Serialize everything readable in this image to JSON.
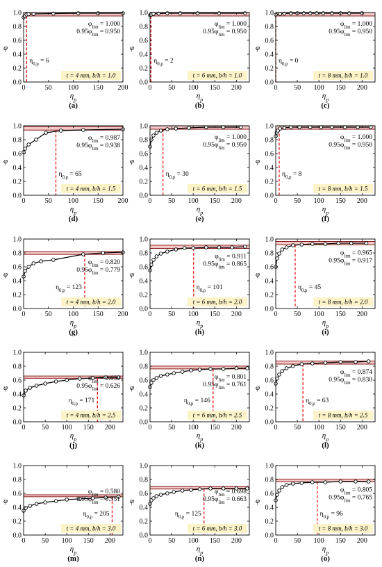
{
  "figure": {
    "colors": {
      "curve": "#000000",
      "marker_fill": "#ffffff",
      "band_fill": "#f2c8c8",
      "limit_line": "#8b1a1a",
      "drop_line": "#e8141a",
      "label_box": "#fcf3c8",
      "grid": "#d6d6d6"
    },
    "xlabel": "η_p",
    "ylabel": "φ"
  },
  "chart_data": [
    {
      "type": "line",
      "panel_label": "(a)",
      "annotation": "t = 4 mm, b/h = 1.0",
      "phi_lim_label": "φ_lim = 1.000",
      "phi_95_label": "0.95φ_lim = 0.950",
      "eta_label": "η_0,p = 6",
      "phi_lim": 1.0,
      "phi_95": 0.95,
      "eta0": 6,
      "xlim": [
        0,
        200
      ],
      "ylim": [
        0,
        1.0
      ],
      "xticks": [
        0,
        50,
        100,
        150,
        200
      ],
      "yticks": [
        0,
        0.2,
        0.4,
        0.6,
        0.8,
        1.0
      ],
      "x": [
        0,
        2,
        6,
        10,
        20,
        60,
        110,
        150,
        200
      ],
      "y": [
        0.93,
        0.95,
        0.97,
        0.975,
        0.98,
        0.985,
        0.99,
        0.99,
        0.99
      ]
    },
    {
      "type": "line",
      "panel_label": "(b)",
      "annotation": "t = 6 mm, b/h = 1.0",
      "phi_lim_label": "φ_lim = 1.000",
      "phi_95_label": "0.95φ_lim = 0.950",
      "eta_label": "η_0,p = 2",
      "phi_lim": 1.0,
      "phi_95": 0.95,
      "eta0": 2,
      "xlim": [
        0,
        230
      ],
      "ylim": [
        0,
        1.0
      ],
      "xticks": [
        0,
        50,
        100,
        150,
        200
      ],
      "yticks": [
        0,
        0.2,
        0.4,
        0.6,
        0.8,
        1.0
      ],
      "x": [
        0,
        2,
        8,
        20,
        40,
        70,
        110,
        160,
        220
      ],
      "y": [
        0.96,
        0.97,
        0.98,
        0.985,
        0.99,
        0.99,
        0.99,
        0.99,
        0.99
      ]
    },
    {
      "type": "line",
      "panel_label": "(c)",
      "annotation": "t = 8 mm, b/h = 1.0",
      "phi_lim_label": "φ_lim = 1.000",
      "phi_95_label": "0.95φ_lim = 0.950",
      "eta_label": "η_0,p = 0",
      "phi_lim": 1.0,
      "phi_95": 0.95,
      "eta0": 0,
      "xlim": [
        0,
        230
      ],
      "ylim": [
        0,
        1.0
      ],
      "xticks": [
        0,
        50,
        100,
        150,
        200
      ],
      "yticks": [
        0,
        0.2,
        0.4,
        0.6,
        0.8,
        1.0
      ],
      "x": [
        0,
        10,
        20,
        35,
        50,
        65,
        80,
        95,
        110,
        130,
        150,
        170,
        200
      ],
      "y": [
        0.97,
        0.98,
        0.985,
        0.99,
        0.99,
        0.99,
        0.99,
        0.99,
        0.99,
        0.99,
        0.99,
        0.99,
        0.99
      ]
    },
    {
      "type": "line",
      "panel_label": "(d)",
      "annotation": "t = 4 mm, b/h = 1.5",
      "phi_lim_label": "φ_lim = 0.987",
      "phi_95_label": "0.95φ_lim = 0.938",
      "eta_label": "η_0,p = 65",
      "phi_lim": 0.987,
      "phi_95": 0.938,
      "eta0": 65,
      "xlim": [
        0,
        200
      ],
      "ylim": [
        0,
        1.0
      ],
      "xticks": [
        0,
        50,
        100,
        150,
        200
      ],
      "yticks": [
        0,
        0.2,
        0.4,
        0.6,
        0.8,
        1.0
      ],
      "x": [
        0,
        3,
        10,
        25,
        45,
        75,
        120,
        200
      ],
      "y": [
        0.62,
        0.67,
        0.73,
        0.8,
        0.9,
        0.93,
        0.94,
        0.95
      ]
    },
    {
      "type": "line",
      "panel_label": "(e)",
      "annotation": "t = 6 mm, b/h = 1.5",
      "phi_lim_label": "φ_lim = 1.000",
      "phi_95_label": "0.95φ_lim = 0.950",
      "eta_label": "η_0,p = 30",
      "phi_lim": 1.0,
      "phi_95": 0.95,
      "eta0": 30,
      "xlim": [
        0,
        230
      ],
      "ylim": [
        0,
        1.0
      ],
      "xticks": [
        0,
        50,
        100,
        150,
        200
      ],
      "yticks": [
        0,
        0.2,
        0.4,
        0.6,
        0.8,
        1.0
      ],
      "x": [
        0,
        3,
        8,
        15,
        25,
        40,
        60,
        90,
        130,
        170,
        210
      ],
      "y": [
        0.7,
        0.8,
        0.86,
        0.9,
        0.93,
        0.95,
        0.96,
        0.97,
        0.98,
        0.98,
        0.98
      ]
    },
    {
      "type": "line",
      "panel_label": "(f)",
      "annotation": "t = 8 mm, b/h = 1.5",
      "phi_lim_label": "φ_lim = 1.000",
      "phi_95_label": "0.95φ_lim = 0.950",
      "eta_label": "η_0,p = 8",
      "phi_lim": 1.0,
      "phi_95": 0.95,
      "eta0": 8,
      "xlim": [
        0,
        230
      ],
      "ylim": [
        0,
        1.0
      ],
      "xticks": [
        0,
        50,
        100,
        150,
        200
      ],
      "yticks": [
        0,
        0.2,
        0.4,
        0.6,
        0.8,
        1.0
      ],
      "x": [
        0,
        2,
        5,
        10,
        20,
        35,
        55,
        80,
        105,
        130,
        160,
        190,
        220
      ],
      "y": [
        0.85,
        0.9,
        0.93,
        0.96,
        0.97,
        0.98,
        0.98,
        0.98,
        0.98,
        0.98,
        0.98,
        0.98,
        0.98
      ]
    },
    {
      "type": "line",
      "panel_label": "(g)",
      "annotation": "t = 4 mm, b/h = 2.0",
      "phi_lim_label": "φ_lim = 0.820",
      "phi_95_label": "0.95φ_lim = 0.779",
      "eta_label": "η_0,p = 123",
      "phi_lim": 0.82,
      "phi_95": 0.779,
      "eta0": 123,
      "xlim": [
        0,
        200
      ],
      "ylim": [
        0,
        1.0
      ],
      "xticks": [
        0,
        50,
        100,
        150,
        200
      ],
      "yticks": [
        0,
        0.2,
        0.4,
        0.6,
        0.8,
        1.0
      ],
      "x": [
        0,
        3,
        10,
        20,
        35,
        60,
        120,
        160,
        200
      ],
      "y": [
        0.46,
        0.54,
        0.6,
        0.65,
        0.68,
        0.7,
        0.78,
        0.8,
        0.81
      ]
    },
    {
      "type": "line",
      "panel_label": "(h)",
      "annotation": "t = 6 mm, b/h = 2.0",
      "phi_lim_label": "φ_lim = 0.911",
      "phi_95_label": "0.95φ_lim = 0.865",
      "eta_label": "η_0,p = 101",
      "phi_lim": 0.911,
      "phi_95": 0.865,
      "eta0": 101,
      "xlim": [
        0,
        230
      ],
      "ylim": [
        0,
        1.0
      ],
      "xticks": [
        0,
        50,
        100,
        150,
        200
      ],
      "yticks": [
        0,
        0.2,
        0.4,
        0.6,
        0.8,
        1.0
      ],
      "x": [
        0,
        3,
        8,
        15,
        25,
        40,
        60,
        80,
        100,
        130,
        160,
        190,
        220
      ],
      "y": [
        0.55,
        0.63,
        0.7,
        0.75,
        0.79,
        0.82,
        0.85,
        0.87,
        0.87,
        0.88,
        0.88,
        0.88,
        0.89
      ]
    },
    {
      "type": "line",
      "panel_label": "(i)",
      "annotation": "t = 8 mm, b/h = 2.0",
      "phi_lim_label": "φ_lim = 0.965",
      "phi_95_label": "0.95φ_lim = 0.917",
      "eta_label": "η_0,p = 45",
      "phi_lim": 0.965,
      "phi_95": 0.917,
      "eta0": 45,
      "xlim": [
        0,
        230
      ],
      "ylim": [
        0,
        1.0
      ],
      "xticks": [
        0,
        50,
        100,
        150,
        200
      ],
      "yticks": [
        0,
        0.2,
        0.4,
        0.6,
        0.8,
        1.0
      ],
      "x": [
        0,
        3,
        8,
        15,
        25,
        40,
        60,
        85,
        115,
        145,
        175,
        210
      ],
      "y": [
        0.6,
        0.72,
        0.79,
        0.85,
        0.88,
        0.91,
        0.92,
        0.93,
        0.93,
        0.94,
        0.94,
        0.94
      ]
    },
    {
      "type": "line",
      "panel_label": "(j)",
      "annotation": "t = 4 mm, b/h = 2.5",
      "phi_lim_label": "φ_lim = 0.659",
      "phi_95_label": "0.95φ_lim = 0.626",
      "eta_label": "η_0,p = 171",
      "phi_lim": 0.659,
      "phi_95": 0.626,
      "eta0": 171,
      "xlim": [
        0,
        230
      ],
      "ylim": [
        0,
        1.0
      ],
      "xticks": [
        0,
        50,
        100,
        150,
        200
      ],
      "yticks": [
        0,
        0.2,
        0.4,
        0.6,
        0.8,
        1.0
      ],
      "x": [
        0,
        5,
        15,
        30,
        50,
        75,
        100,
        130,
        160,
        190,
        220
      ],
      "y": [
        0.38,
        0.45,
        0.49,
        0.52,
        0.55,
        0.58,
        0.6,
        0.62,
        0.63,
        0.64,
        0.64
      ]
    },
    {
      "type": "line",
      "panel_label": "(k)",
      "annotation": "t = 6 mm, b/h = 2.5",
      "phi_lim_label": "φ_lim = 0.801",
      "phi_95_label": "0.95φ_lim = 0.761",
      "eta_label": "η_0,p = 146",
      "phi_lim": 0.801,
      "phi_95": 0.761,
      "eta0": 146,
      "xlim": [
        0,
        230
      ],
      "ylim": [
        0,
        1.0
      ],
      "xticks": [
        0,
        50,
        100,
        150,
        200
      ],
      "yticks": [
        0,
        0.2,
        0.4,
        0.6,
        0.8,
        1.0
      ],
      "x": [
        0,
        3,
        8,
        15,
        25,
        40,
        55,
        75,
        95,
        115,
        140,
        170,
        200,
        225
      ],
      "y": [
        0.5,
        0.56,
        0.6,
        0.63,
        0.66,
        0.68,
        0.7,
        0.72,
        0.74,
        0.75,
        0.76,
        0.76,
        0.77,
        0.77
      ]
    },
    {
      "type": "line",
      "panel_label": "(l)",
      "annotation": "t = 8 mm, b/h = 2.5",
      "phi_lim_label": "φ_lim = 0.874",
      "phi_95_label": "0.95φ_lim = 0.830",
      "eta_label": "η_0,p = 63",
      "phi_lim": 0.874,
      "phi_95": 0.83,
      "eta0": 63,
      "xlim": [
        0,
        230
      ],
      "ylim": [
        0,
        1.0
      ],
      "xticks": [
        0,
        50,
        100,
        150,
        200
      ],
      "yticks": [
        0,
        0.2,
        0.4,
        0.6,
        0.8,
        1.0
      ],
      "x": [
        0,
        3,
        8,
        15,
        25,
        40,
        60,
        85,
        115,
        150,
        185,
        215
      ],
      "y": [
        0.55,
        0.62,
        0.68,
        0.73,
        0.77,
        0.8,
        0.83,
        0.84,
        0.85,
        0.86,
        0.86,
        0.87
      ]
    },
    {
      "type": "line",
      "panel_label": "(m)",
      "annotation": "t = 4 mm, b/h = 3.0",
      "phi_lim_label": "φ_lim = 0.580",
      "phi_95_label": "0.95φ_lim = 0.551",
      "eta_label": "η_0,p = 205",
      "phi_lim": 0.58,
      "phi_95": 0.551,
      "eta0": 205,
      "xlim": [
        0,
        230
      ],
      "ylim": [
        0,
        1.0
      ],
      "xticks": [
        0,
        50,
        100,
        150,
        200
      ],
      "yticks": [
        0,
        0.2,
        0.4,
        0.6,
        0.8,
        1.0
      ],
      "x": [
        0,
        5,
        15,
        30,
        50,
        75,
        100,
        130,
        160,
        190,
        220
      ],
      "y": [
        0.35,
        0.39,
        0.42,
        0.45,
        0.47,
        0.49,
        0.51,
        0.52,
        0.53,
        0.54,
        0.55
      ]
    },
    {
      "type": "line",
      "panel_label": "(n)",
      "annotation": "t = 6 mm, b/h = 3.0",
      "phi_lim_label": "φ_lim = 0.698",
      "phi_95_label": "0.95φ_lim = 0.663",
      "eta_label": "η_0,p = 125",
      "phi_lim": 0.698,
      "phi_95": 0.663,
      "eta0": 125,
      "xlim": [
        0,
        230
      ],
      "ylim": [
        0,
        1.0
      ],
      "xticks": [
        0,
        50,
        100,
        150,
        200
      ],
      "yticks": [
        0,
        0.2,
        0.4,
        0.6,
        0.8,
        1.0
      ],
      "x": [
        0,
        3,
        8,
        15,
        25,
        40,
        55,
        75,
        95,
        115,
        140,
        170,
        200,
        225
      ],
      "y": [
        0.45,
        0.5,
        0.53,
        0.56,
        0.58,
        0.6,
        0.62,
        0.64,
        0.65,
        0.66,
        0.67,
        0.67,
        0.67,
        0.67
      ]
    },
    {
      "type": "line",
      "panel_label": "(o)",
      "annotation": "t = 8 mm, b/h = 3.0",
      "phi_lim_label": "φ_lim = 0.805",
      "phi_95_label": "0.95φ_lim = 0.765",
      "eta_label": "η_0,p = 96",
      "phi_lim": 0.805,
      "phi_95": 0.765,
      "eta0": 96,
      "xlim": [
        0,
        230
      ],
      "ylim": [
        0,
        1.0
      ],
      "xticks": [
        0,
        50,
        100,
        150,
        200
      ],
      "yticks": [
        0,
        0.2,
        0.4,
        0.6,
        0.8,
        1.0
      ],
      "x": [
        0,
        3,
        8,
        15,
        25,
        40,
        60,
        85,
        115,
        150,
        185,
        215
      ],
      "y": [
        0.5,
        0.58,
        0.64,
        0.69,
        0.72,
        0.74,
        0.75,
        0.76,
        0.76,
        0.77,
        0.77,
        0.77
      ]
    }
  ]
}
